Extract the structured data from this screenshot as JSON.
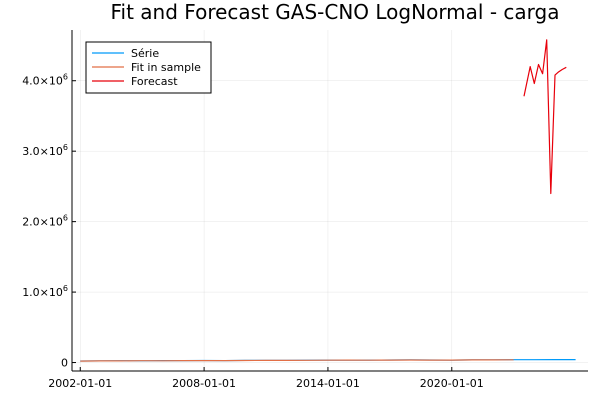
{
  "chart_data": {
    "type": "line",
    "title": "Fit and Forecast GAS-CNO LogNormal - carga",
    "xlabel": "",
    "ylabel": "",
    "grid": true,
    "legend_position": "top-left",
    "xlim": [
      2001.6,
      2026.6
    ],
    "ylim": [
      -120000,
      4720000
    ],
    "x_ticks": [
      {
        "value": 2002.0,
        "label": "2002-01-01"
      },
      {
        "value": 2008.0,
        "label": "2008-01-01"
      },
      {
        "value": 2014.0,
        "label": "2014-01-01"
      },
      {
        "value": 2020.0,
        "label": "2020-01-01"
      }
    ],
    "y_ticks": [
      {
        "value": 0,
        "mantissa": "0",
        "exponent": ""
      },
      {
        "value": 1000000,
        "mantissa": "1.0×10",
        "exponent": "6"
      },
      {
        "value": 2000000,
        "mantissa": "2.0×10",
        "exponent": "6"
      },
      {
        "value": 3000000,
        "mantissa": "3.0×10",
        "exponent": "6"
      },
      {
        "value": 4000000,
        "mantissa": "4.0×10",
        "exponent": "6"
      }
    ],
    "series": [
      {
        "name": "Série",
        "color": "#009af9",
        "x": [
          2002.0,
          2003.0,
          2004.0,
          2005.0,
          2006.0,
          2007.0,
          2008.0,
          2009.0,
          2010.0,
          2011.0,
          2012.0,
          2013.0,
          2014.0,
          2015.0,
          2016.0,
          2017.0,
          2018.0,
          2019.0,
          2020.0,
          2021.0,
          2022.0,
          2023.0,
          2024.0,
          2025.0,
          2026.0
        ],
        "y": [
          22000,
          24000,
          26000,
          25000,
          27000,
          28000,
          29000,
          28000,
          30000,
          31000,
          32000,
          33000,
          34000,
          33000,
          35000,
          36000,
          37000,
          36000,
          35000,
          38000,
          39000,
          40000,
          41000,
          42000,
          42500
        ]
      },
      {
        "name": "Fit in sample",
        "color": "#e26f46",
        "x": [
          2002.0,
          2003.0,
          2004.0,
          2005.0,
          2006.0,
          2007.0,
          2008.0,
          2009.0,
          2010.0,
          2011.0,
          2012.0,
          2013.0,
          2014.0,
          2015.0,
          2016.0,
          2017.0,
          2018.0,
          2019.0,
          2020.0,
          2021.0,
          2022.0,
          2023.0
        ],
        "y": [
          20000,
          23000,
          24000,
          26000,
          25000,
          27000,
          28000,
          27000,
          29000,
          30000,
          31000,
          32000,
          33000,
          34000,
          33000,
          35000,
          36000,
          35000,
          34000,
          37000,
          38000,
          39000
        ]
      },
      {
        "name": "Forecast",
        "color": "#e8000b",
        "x": [
          2023.5,
          2023.8,
          2024.0,
          2024.2,
          2024.4,
          2024.6,
          2024.8,
          2025.0,
          2025.15,
          2025.35,
          2025.55
        ],
        "y": [
          3780000,
          4200000,
          3960000,
          4230000,
          4100000,
          4580000,
          2400000,
          4080000,
          4120000,
          4160000,
          4190000
        ]
      }
    ]
  }
}
